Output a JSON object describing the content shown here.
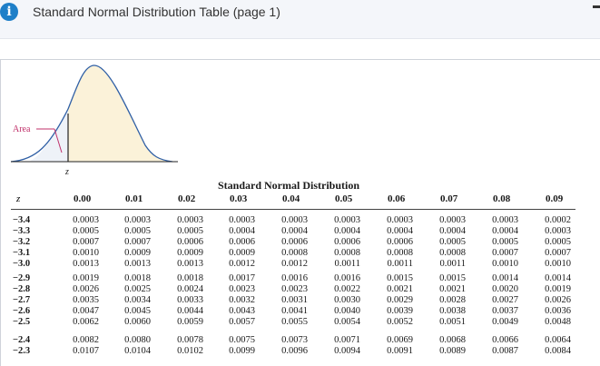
{
  "header": {
    "info_icon": "info-icon",
    "title": "Standard Normal Distribution Table (page 1)"
  },
  "figure": {
    "area_label": "Area",
    "z_label": "z"
  },
  "table": {
    "caption": "Standard Normal Distribution",
    "z_header": "z",
    "columns": [
      "0.00",
      "0.01",
      "0.02",
      "0.03",
      "0.04",
      "0.05",
      "0.06",
      "0.07",
      "0.08",
      "0.09"
    ],
    "rows": [
      {
        "z": "−3.4",
        "v": [
          "0.0003",
          "0.0003",
          "0.0003",
          "0.0003",
          "0.0003",
          "0.0003",
          "0.0003",
          "0.0003",
          "0.0003",
          "0.0002"
        ]
      },
      {
        "z": "−3.3",
        "v": [
          "0.0005",
          "0.0005",
          "0.0005",
          "0.0004",
          "0.0004",
          "0.0004",
          "0.0004",
          "0.0004",
          "0.0004",
          "0.0003"
        ]
      },
      {
        "z": "−3.2",
        "v": [
          "0.0007",
          "0.0007",
          "0.0006",
          "0.0006",
          "0.0006",
          "0.0006",
          "0.0006",
          "0.0005",
          "0.0005",
          "0.0005"
        ]
      },
      {
        "z": "−3.1",
        "v": [
          "0.0010",
          "0.0009",
          "0.0009",
          "0.0009",
          "0.0008",
          "0.0008",
          "0.0008",
          "0.0008",
          "0.0007",
          "0.0007"
        ]
      },
      {
        "z": "−3.0",
        "v": [
          "0.0013",
          "0.0013",
          "0.0013",
          "0.0012",
          "0.0012",
          "0.0011",
          "0.0011",
          "0.0011",
          "0.0010",
          "0.0010"
        ]
      },
      {
        "z": "−2.9",
        "v": [
          "0.0019",
          "0.0018",
          "0.0018",
          "0.0017",
          "0.0016",
          "0.0016",
          "0.0015",
          "0.0015",
          "0.0014",
          "0.0014"
        ]
      },
      {
        "z": "−2.8",
        "v": [
          "0.0026",
          "0.0025",
          "0.0024",
          "0.0023",
          "0.0023",
          "0.0022",
          "0.0021",
          "0.0021",
          "0.0020",
          "0.0019"
        ]
      },
      {
        "z": "−2.7",
        "v": [
          "0.0035",
          "0.0034",
          "0.0033",
          "0.0032",
          "0.0031",
          "0.0030",
          "0.0029",
          "0.0028",
          "0.0027",
          "0.0026"
        ]
      },
      {
        "z": "−2.6",
        "v": [
          "0.0047",
          "0.0045",
          "0.0044",
          "0.0043",
          "0.0041",
          "0.0040",
          "0.0039",
          "0.0038",
          "0.0037",
          "0.0036"
        ]
      },
      {
        "z": "−2.5",
        "v": [
          "0.0062",
          "0.0060",
          "0.0059",
          "0.0057",
          "0.0055",
          "0.0054",
          "0.0052",
          "0.0051",
          "0.0049",
          "0.0048"
        ]
      },
      {
        "z": "−2.4",
        "v": [
          "0.0082",
          "0.0080",
          "0.0078",
          "0.0075",
          "0.0073",
          "0.0071",
          "0.0069",
          "0.0068",
          "0.0066",
          "0.0064"
        ]
      },
      {
        "z": "−2.3",
        "v": [
          "0.0107",
          "0.0104",
          "0.0102",
          "0.0099",
          "0.0096",
          "0.0094",
          "0.0091",
          "0.0089",
          "0.0087",
          "0.0084"
        ]
      }
    ]
  }
}
